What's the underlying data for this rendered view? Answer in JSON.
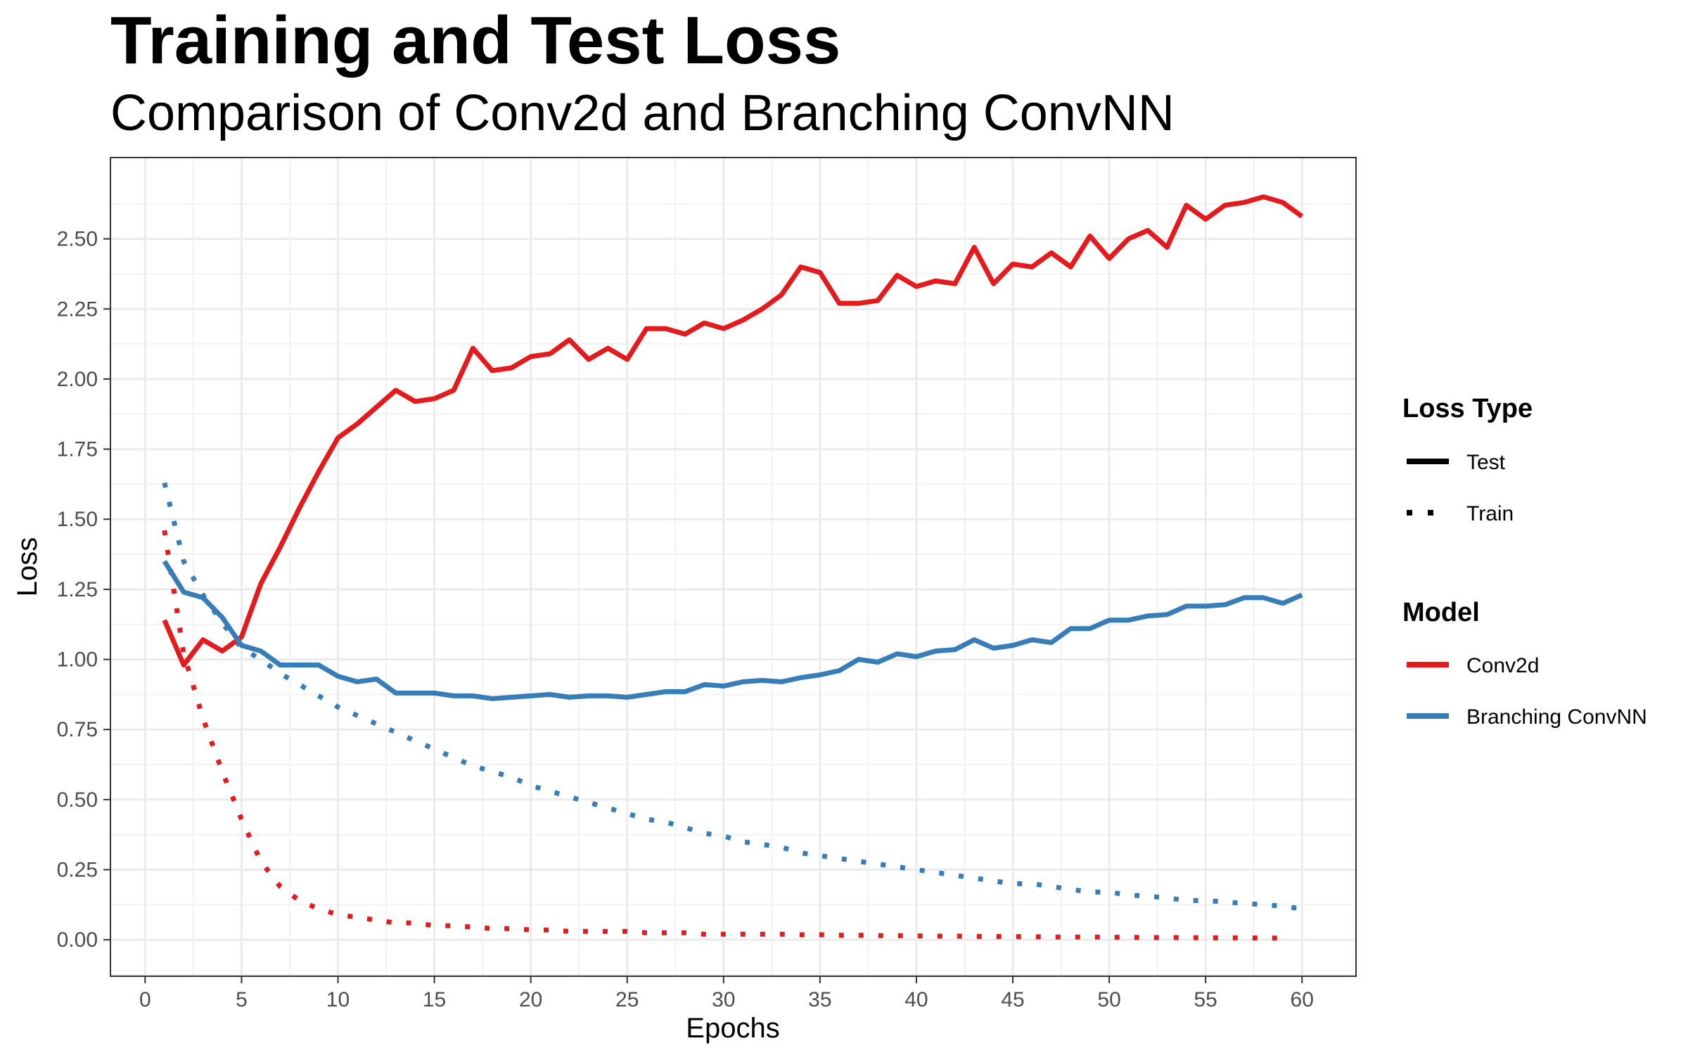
{
  "chart_data": {
    "type": "line",
    "title": "Training and Test Loss",
    "subtitle": "Comparison of Conv2d and Branching ConvNN",
    "xlabel": "Epochs",
    "ylabel": "Loss",
    "xlim": [
      -1.8,
      62.8
    ],
    "ylim": [
      -0.13,
      2.79
    ],
    "xticks": [
      0,
      5,
      10,
      15,
      20,
      25,
      30,
      35,
      40,
      45,
      50,
      55,
      60
    ],
    "yticks": [
      0,
      0.25,
      0.5,
      0.75,
      1.0,
      1.25,
      1.5,
      1.75,
      2.0,
      2.25,
      2.5
    ],
    "ytick_labels": [
      "0.00",
      "0.25",
      "0.50",
      "0.75",
      "1.00",
      "1.25",
      "1.50",
      "1.75",
      "2.00",
      "2.25",
      "2.50"
    ],
    "grid": true,
    "legend_position": "right",
    "legend": {
      "loss_type": {
        "title": "Loss Type",
        "items": [
          {
            "label": "Test",
            "linetype": "solid"
          },
          {
            "label": "Train",
            "linetype": "dotted"
          }
        ]
      },
      "model": {
        "title": "Model",
        "items": [
          {
            "label": "Conv2d",
            "color": "#e41a1c"
          },
          {
            "label": "Branching ConvNN",
            "color": "#377eb8"
          }
        ]
      }
    },
    "series": [
      {
        "model": "Conv2d",
        "loss_type": "Test",
        "color": "#e41a1c",
        "linetype": "solid",
        "x": [
          1,
          2,
          3,
          4,
          5,
          6,
          7,
          8,
          9,
          10,
          11,
          12,
          13,
          14,
          15,
          16,
          17,
          18,
          19,
          20,
          21,
          22,
          23,
          24,
          25,
          26,
          27,
          28,
          29,
          30,
          31,
          32,
          33,
          34,
          35,
          36,
          37,
          38,
          39,
          40,
          41,
          42,
          43,
          44,
          45,
          46,
          47,
          48,
          49,
          50,
          51,
          52,
          53,
          54,
          55,
          56,
          57,
          58,
          59,
          60
        ],
        "values": [
          1.14,
          0.98,
          1.07,
          1.03,
          1.08,
          1.27,
          1.4,
          1.54,
          1.67,
          1.79,
          1.84,
          1.9,
          1.96,
          1.92,
          1.93,
          1.96,
          2.11,
          2.03,
          2.04,
          2.08,
          2.09,
          2.14,
          2.07,
          2.11,
          2.07,
          2.18,
          2.18,
          2.16,
          2.2,
          2.18,
          2.21,
          2.25,
          2.3,
          2.4,
          2.38,
          2.27,
          2.27,
          2.28,
          2.37,
          2.33,
          2.35,
          2.34,
          2.47,
          2.34,
          2.41,
          2.4,
          2.45,
          2.4,
          2.51,
          2.43,
          2.5,
          2.53,
          2.47,
          2.62,
          2.57,
          2.62,
          2.63,
          2.65,
          2.63,
          2.58
        ]
      },
      {
        "model": "Conv2d",
        "loss_type": "Train",
        "color": "#e41a1c",
        "linetype": "dotted",
        "x": [
          1,
          2,
          3,
          4,
          5,
          6,
          7,
          8,
          9,
          10,
          11,
          12,
          13,
          14,
          15,
          16,
          17,
          18,
          19,
          20,
          21,
          22,
          23,
          24,
          25,
          26,
          27,
          28,
          29,
          30,
          31,
          32,
          33,
          34,
          35,
          36,
          37,
          38,
          39,
          40,
          41,
          42,
          43,
          44,
          45,
          46,
          47,
          48,
          49,
          50,
          51,
          52,
          53,
          54,
          55,
          56,
          57,
          58,
          59
        ],
        "values": [
          1.46,
          1.02,
          0.79,
          0.6,
          0.43,
          0.28,
          0.19,
          0.14,
          0.11,
          0.09,
          0.08,
          0.07,
          0.06,
          0.06,
          0.05,
          0.05,
          0.045,
          0.04,
          0.04,
          0.035,
          0.035,
          0.03,
          0.03,
          0.03,
          0.03,
          0.025,
          0.025,
          0.025,
          0.02,
          0.02,
          0.02,
          0.02,
          0.02,
          0.018,
          0.018,
          0.016,
          0.016,
          0.015,
          0.015,
          0.014,
          0.013,
          0.013,
          0.012,
          0.012,
          0.011,
          0.011,
          0.01,
          0.01,
          0.01,
          0.009,
          0.009,
          0.008,
          0.008,
          0.008,
          0.007,
          0.007,
          0.007,
          0.006,
          0.006
        ]
      },
      {
        "model": "Branching ConvNN",
        "loss_type": "Test",
        "color": "#377eb8",
        "linetype": "solid",
        "x": [
          1,
          2,
          3,
          4,
          5,
          6,
          7,
          8,
          9,
          10,
          11,
          12,
          13,
          14,
          15,
          16,
          17,
          18,
          19,
          20,
          21,
          22,
          23,
          24,
          25,
          26,
          27,
          28,
          29,
          30,
          31,
          32,
          33,
          34,
          35,
          36,
          37,
          38,
          39,
          40,
          41,
          42,
          43,
          44,
          45,
          46,
          47,
          48,
          49,
          50,
          51,
          52,
          53,
          54,
          55,
          56,
          57,
          58,
          59,
          60
        ],
        "values": [
          1.35,
          1.24,
          1.22,
          1.15,
          1.05,
          1.03,
          0.98,
          0.98,
          0.98,
          0.94,
          0.92,
          0.93,
          0.88,
          0.88,
          0.88,
          0.87,
          0.87,
          0.86,
          0.865,
          0.87,
          0.875,
          0.865,
          0.87,
          0.87,
          0.865,
          0.875,
          0.885,
          0.885,
          0.91,
          0.905,
          0.92,
          0.925,
          0.92,
          0.935,
          0.945,
          0.96,
          1.0,
          0.99,
          1.02,
          1.01,
          1.03,
          1.035,
          1.07,
          1.04,
          1.05,
          1.07,
          1.06,
          1.11,
          1.11,
          1.14,
          1.14,
          1.155,
          1.16,
          1.19,
          1.19,
          1.195,
          1.22,
          1.22,
          1.2,
          1.23
        ]
      },
      {
        "model": "Branching ConvNN",
        "loss_type": "Train",
        "color": "#377eb8",
        "linetype": "dotted",
        "x": [
          1,
          2,
          3,
          4,
          5,
          6,
          7,
          8,
          9,
          10,
          11,
          12,
          13,
          14,
          15,
          16,
          17,
          18,
          19,
          20,
          21,
          22,
          23,
          24,
          25,
          26,
          27,
          28,
          29,
          30,
          31,
          32,
          33,
          34,
          35,
          36,
          37,
          38,
          39,
          40,
          41,
          42,
          43,
          44,
          45,
          46,
          47,
          48,
          49,
          50,
          51,
          52,
          53,
          54,
          55,
          56,
          57,
          58,
          59,
          60
        ],
        "values": [
          1.63,
          1.35,
          1.23,
          1.13,
          1.04,
          1.0,
          0.95,
          0.91,
          0.87,
          0.83,
          0.8,
          0.77,
          0.74,
          0.71,
          0.68,
          0.65,
          0.62,
          0.6,
          0.58,
          0.55,
          0.53,
          0.51,
          0.49,
          0.47,
          0.45,
          0.43,
          0.42,
          0.4,
          0.38,
          0.37,
          0.35,
          0.34,
          0.33,
          0.31,
          0.3,
          0.29,
          0.28,
          0.27,
          0.26,
          0.25,
          0.24,
          0.23,
          0.22,
          0.21,
          0.2,
          0.2,
          0.19,
          0.18,
          0.17,
          0.17,
          0.16,
          0.155,
          0.15,
          0.14,
          0.14,
          0.135,
          0.13,
          0.125,
          0.12,
          0.11
        ]
      }
    ]
  }
}
